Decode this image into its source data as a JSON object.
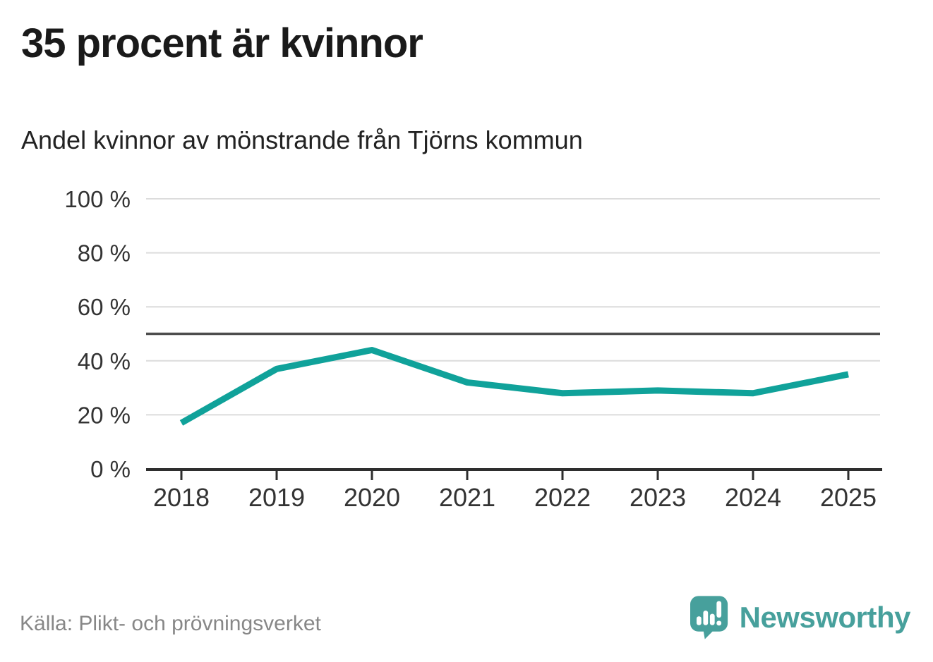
{
  "header": {
    "title": "35 procent är kvinnor",
    "subtitle": "Andel kvinnor av mönstrande från Tjörns kommun"
  },
  "footer": {
    "source": "Källa: Plikt- och prövningsverket",
    "brand_name": "Newsworthy",
    "brand_icon": "speech-bubble-bar-chart-exclamation"
  },
  "colors": {
    "line": "#10a29a",
    "brand": "#47a09c",
    "grid": "#dcdcdc",
    "axis": "#2e2e2e",
    "reference": "#4d4d4d",
    "tick_text": "#333333",
    "muted": "#878787"
  },
  "chart_data": {
    "type": "line",
    "title": "35 procent är kvinnor",
    "subtitle": "Andel kvinnor av mönstrande från Tjörns kommun",
    "categories": [
      "2018",
      "2019",
      "2020",
      "2021",
      "2022",
      "2023",
      "2024",
      "2025"
    ],
    "series": [
      {
        "name": "Andel kvinnor av mönstrande",
        "values": [
          17,
          37,
          44,
          32,
          28,
          29,
          28,
          35
        ]
      }
    ],
    "unit": "%",
    "xlabel": "",
    "ylabel": "",
    "ylim": [
      0,
      100
    ],
    "yticks": [
      0,
      20,
      40,
      60,
      80,
      100
    ],
    "ytick_suffix": " %",
    "reference_line": 50,
    "grid": true,
    "legend": false,
    "source": "Källa: Plikt- och prövningsverket"
  }
}
